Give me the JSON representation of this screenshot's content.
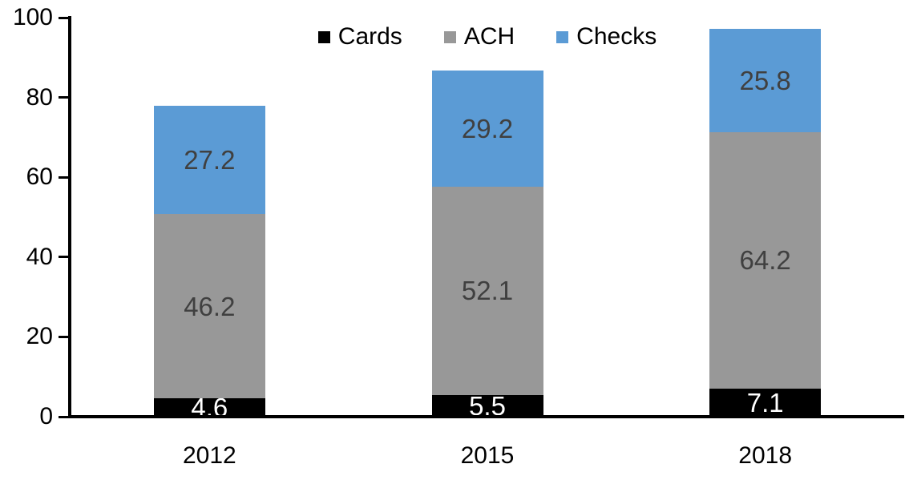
{
  "chart_data": {
    "type": "bar",
    "stacked": true,
    "title": "",
    "xlabel": "",
    "ylabel": "",
    "categories": [
      "2012",
      "2015",
      "2018"
    ],
    "series": [
      {
        "name": "Cards",
        "color": "#000000",
        "label_color": "#ffffff",
        "values": [
          4.6,
          5.5,
          7.1
        ]
      },
      {
        "name": "ACH",
        "color": "#989898",
        "label_color": "#404040",
        "values": [
          46.2,
          52.1,
          64.2
        ]
      },
      {
        "name": "Checks",
        "color": "#5B9BD5",
        "label_color": "#404040",
        "values": [
          27.2,
          29.2,
          25.8
        ]
      }
    ],
    "ylim": [
      0,
      100
    ],
    "yticks": [
      0,
      20,
      40,
      60,
      80,
      100
    ],
    "grid": false,
    "legend_position": "top-center",
    "axis_color": "#000000"
  }
}
